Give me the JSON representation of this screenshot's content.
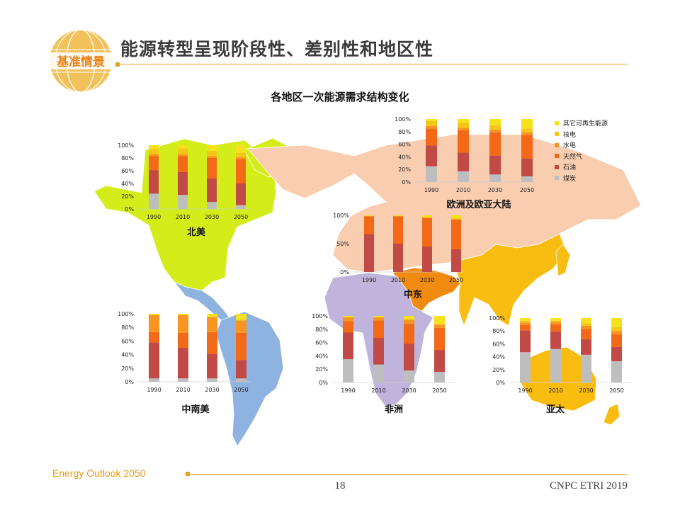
{
  "header": {
    "badge": "基准情景",
    "title": "能源转型呈现阶段性、差别性和地区性"
  },
  "footer": {
    "brand": "Energy Outlook 2050",
    "page": "18",
    "org": "CNPC ETRI 2019"
  },
  "colors": {
    "accent": "#e8a020",
    "map_north_america": "#d4ec1a",
    "map_latin_america": "#8fb3e0",
    "map_europe_eurasia": "#f8cdb0",
    "map_middle_east": "#f08a10",
    "map_africa": "#c0b4dc",
    "map_asia_pacific": "#f9bc10"
  },
  "chart_data": {
    "type": "bar",
    "subtype": "stacked-percent",
    "title": "各地区一次能源需求结构变化",
    "legend": {
      "placement": "top-right",
      "entries": [
        {
          "name": "其它可再生能源",
          "color": "#f5e21c"
        },
        {
          "name": "核电",
          "color": "#f5c518"
        },
        {
          "name": "水电",
          "color": "#f79422"
        },
        {
          "name": "天然气",
          "color": "#f26a18"
        },
        {
          "name": "石油",
          "color": "#c24a46"
        },
        {
          "name": "煤炭",
          "color": "#bebebe"
        }
      ]
    },
    "series_order": [
      "煤炭",
      "石油",
      "天然气",
      "水电",
      "核电",
      "其它可再生能源"
    ],
    "series_colors": [
      "#bebebe",
      "#c24a46",
      "#f26a18",
      "#f79422",
      "#f5c518",
      "#f5e21c"
    ],
    "panels": [
      {
        "region": "北美",
        "categories": [
          "1990",
          "2010",
          "2030",
          "2050"
        ],
        "yticks": [
          "0%",
          "20%",
          "40%",
          "60%",
          "80%",
          "100%"
        ],
        "ylim": [
          0,
          100
        ],
        "values": [
          [
            24,
            37,
            22,
            3,
            8,
            6
          ],
          [
            22,
            36,
            25,
            3,
            9,
            5
          ],
          [
            11,
            37,
            32,
            3,
            8,
            9
          ],
          [
            6,
            34,
            38,
            3,
            7,
            12
          ]
        ]
      },
      {
        "region": "欧洲及欧亚大陆",
        "categories": [
          "1990",
          "2010",
          "2030",
          "2050"
        ],
        "yticks": [
          "0%",
          "20%",
          "40%",
          "60%",
          "80%",
          "100%"
        ],
        "ylim": [
          0,
          100
        ],
        "values": [
          [
            25,
            33,
            27,
            4,
            8,
            3
          ],
          [
            17,
            30,
            35,
            4,
            8,
            6
          ],
          [
            12,
            30,
            37,
            4,
            7,
            10
          ],
          [
            9,
            28,
            38,
            4,
            6,
            15
          ]
        ]
      },
      {
        "region": "中东",
        "categories": [
          "1990",
          "2010",
          "2030",
          "2050"
        ],
        "yticks": [
          "0%",
          "50%",
          "100%"
        ],
        "ylim": [
          0,
          100
        ],
        "values": [
          [
            0,
            67,
            31,
            1,
            0,
            1
          ],
          [
            0,
            50,
            48,
            1,
            0,
            1
          ],
          [
            0,
            45,
            50,
            1,
            1,
            3
          ],
          [
            0,
            40,
            52,
            1,
            2,
            5
          ]
        ]
      },
      {
        "region": "中南美",
        "categories": [
          "1990",
          "2010",
          "2030",
          "2050"
        ],
        "yticks": [
          "0%",
          "20%",
          "40%",
          "60%",
          "80%",
          "100%"
        ],
        "ylim": [
          0,
          100
        ],
        "values": [
          [
            5,
            53,
            15,
            25,
            1,
            1
          ],
          [
            5,
            45,
            22,
            26,
            1,
            1
          ],
          [
            5,
            36,
            32,
            22,
            1,
            4
          ],
          [
            5,
            27,
            40,
            18,
            1,
            9
          ]
        ]
      },
      {
        "region": "非洲",
        "categories": [
          "1990",
          "2010",
          "2030",
          "2050"
        ],
        "yticks": [
          "0%",
          "20%",
          "40%",
          "60%",
          "80%",
          "100%"
        ],
        "ylim": [
          0,
          100
        ],
        "values": [
          [
            35,
            40,
            17,
            6,
            0,
            2
          ],
          [
            27,
            40,
            26,
            5,
            0,
            2
          ],
          [
            18,
            40,
            30,
            6,
            1,
            5
          ],
          [
            16,
            33,
            33,
            5,
            1,
            12
          ]
        ]
      },
      {
        "region": "亚太",
        "categories": [
          "1990",
          "2010",
          "2030",
          "2050"
        ],
        "yticks": [
          "0%",
          "20%",
          "40%",
          "60%",
          "80%",
          "100%"
        ],
        "ylim": [
          0,
          100
        ],
        "values": [
          [
            47,
            34,
            8,
            4,
            3,
            4
          ],
          [
            52,
            27,
            11,
            4,
            2,
            4
          ],
          [
            43,
            24,
            16,
            5,
            4,
            8
          ],
          [
            33,
            22,
            20,
            5,
            6,
            14
          ]
        ]
      }
    ]
  }
}
